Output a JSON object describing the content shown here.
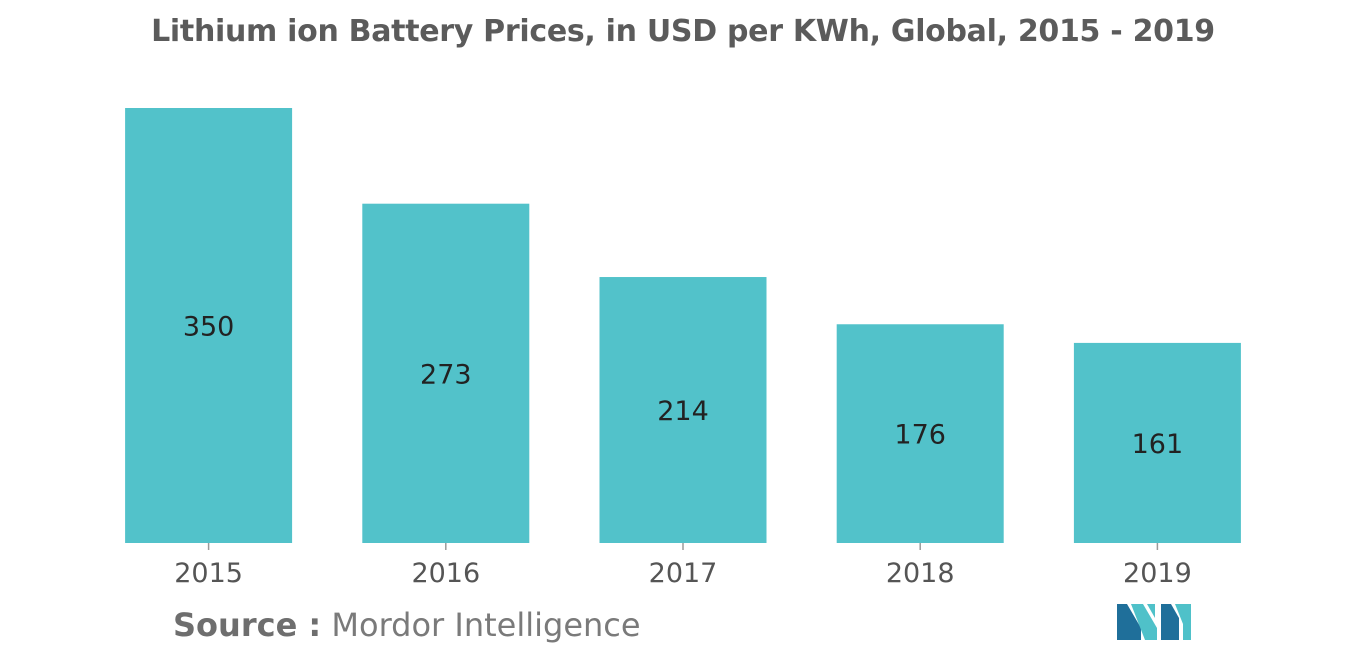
{
  "chart_data": {
    "type": "bar",
    "title": "Lithium ion Battery Prices, in USD per KWh, Global, 2015 - 2019",
    "categories": [
      "2015",
      "2016",
      "2017",
      "2018",
      "2019"
    ],
    "values": [
      350,
      273,
      214,
      176,
      161
    ],
    "xlabel": "",
    "ylabel": "",
    "ylim": [
      0,
      350
    ],
    "grid": false,
    "legend": "none",
    "bar_color": "#52c2ca"
  },
  "source": {
    "label": "Source :",
    "name": "Mordor Intelligence"
  },
  "logo": {
    "icon": "mordor-intelligence-logo-icon",
    "colors": [
      "#1f6f9a",
      "#4fc1c9"
    ]
  }
}
